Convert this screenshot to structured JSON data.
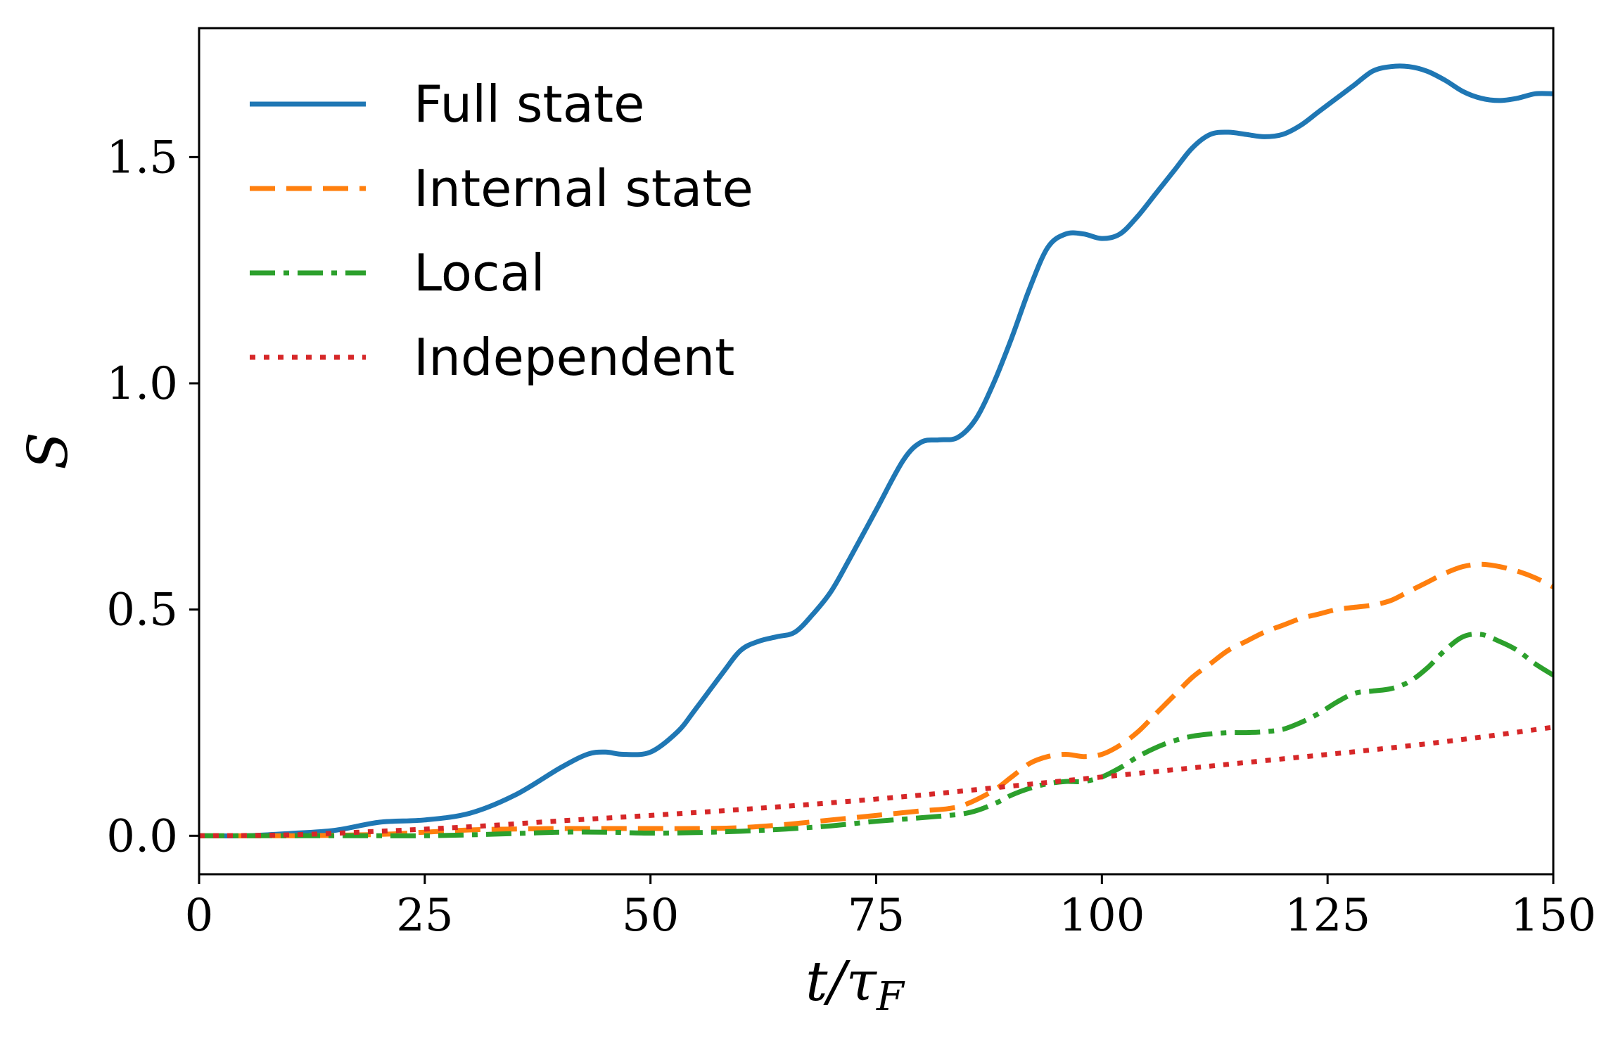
{
  "chart_data": {
    "type": "line",
    "xlabel_main": "t/τ",
    "xlabel_sub": "F",
    "ylabel": "S",
    "xlim": [
      0,
      150
    ],
    "ylim": [
      -0.085,
      1.785
    ],
    "xticks": [
      0,
      25,
      50,
      75,
      100,
      125,
      150
    ],
    "xtick_labels": [
      "0",
      "25",
      "50",
      "75",
      "100",
      "125",
      "150"
    ],
    "yticks": [
      0,
      0.5,
      1,
      1.5
    ],
    "ytick_labels": [
      "0.0",
      "0.5",
      "1.0",
      "1.5"
    ],
    "legend_position": "top-left",
    "grid": false,
    "series": [
      {
        "name": "Full state",
        "color": "#1f77b4",
        "style": "solid",
        "x": [
          0,
          5,
          10,
          15,
          20,
          25,
          30,
          35,
          40,
          43,
          45,
          47,
          50,
          53,
          55,
          58,
          60,
          62,
          64,
          66,
          68,
          70,
          72,
          75,
          78,
          80,
          82,
          84,
          86,
          88,
          90,
          92,
          94,
          96,
          98,
          100,
          102,
          104,
          106,
          108,
          110,
          112,
          114,
          116,
          118,
          120,
          122,
          124,
          126,
          128,
          130,
          132,
          134,
          136,
          138,
          140,
          142,
          144,
          146,
          148,
          150
        ],
        "values": [
          0,
          0,
          0.005,
          0.012,
          0.03,
          0.035,
          0.05,
          0.09,
          0.15,
          0.18,
          0.185,
          0.18,
          0.185,
          0.23,
          0.28,
          0.36,
          0.41,
          0.43,
          0.44,
          0.45,
          0.49,
          0.54,
          0.61,
          0.72,
          0.83,
          0.87,
          0.875,
          0.88,
          0.92,
          1.0,
          1.1,
          1.21,
          1.3,
          1.33,
          1.33,
          1.32,
          1.33,
          1.37,
          1.42,
          1.47,
          1.52,
          1.55,
          1.555,
          1.55,
          1.545,
          1.55,
          1.57,
          1.6,
          1.63,
          1.66,
          1.69,
          1.7,
          1.7,
          1.69,
          1.67,
          1.645,
          1.63,
          1.625,
          1.63,
          1.64,
          1.64
        ]
      },
      {
        "name": "Internal state",
        "color": "#ff7f0e",
        "style": "dashed",
        "x": [
          0,
          10,
          20,
          25,
          30,
          35,
          40,
          45,
          50,
          55,
          60,
          65,
          70,
          75,
          80,
          83,
          85,
          88,
          90,
          92,
          94,
          96,
          98,
          100,
          102,
          104,
          106,
          108,
          110,
          112,
          114,
          116,
          118,
          120,
          122,
          124,
          126,
          128,
          130,
          132,
          134,
          136,
          138,
          140,
          142,
          144,
          146,
          148,
          150
        ],
        "values": [
          0,
          0,
          0.003,
          0.008,
          0.013,
          0.015,
          0.016,
          0.016,
          0.016,
          0.016,
          0.018,
          0.025,
          0.035,
          0.045,
          0.055,
          0.06,
          0.07,
          0.1,
          0.13,
          0.16,
          0.175,
          0.18,
          0.175,
          0.18,
          0.2,
          0.23,
          0.27,
          0.31,
          0.35,
          0.38,
          0.41,
          0.43,
          0.45,
          0.465,
          0.48,
          0.49,
          0.5,
          0.505,
          0.51,
          0.52,
          0.54,
          0.56,
          0.58,
          0.595,
          0.6,
          0.595,
          0.585,
          0.57,
          0.55
        ]
      },
      {
        "name": "Local",
        "color": "#2ca02c",
        "style": "dashdot",
        "x": [
          0,
          10,
          20,
          25,
          30,
          35,
          40,
          45,
          50,
          55,
          60,
          65,
          70,
          75,
          80,
          85,
          88,
          90,
          92,
          94,
          96,
          98,
          100,
          102,
          104,
          106,
          108,
          110,
          112,
          114,
          116,
          118,
          120,
          122,
          124,
          126,
          128,
          130,
          132,
          134,
          136,
          138,
          140,
          142,
          144,
          146,
          148,
          150
        ],
        "values": [
          0,
          0,
          0,
          0,
          0.002,
          0.005,
          0.008,
          0.008,
          0.006,
          0.007,
          0.01,
          0.015,
          0.022,
          0.032,
          0.04,
          0.05,
          0.07,
          0.09,
          0.105,
          0.115,
          0.12,
          0.12,
          0.13,
          0.15,
          0.175,
          0.195,
          0.21,
          0.22,
          0.225,
          0.228,
          0.228,
          0.23,
          0.235,
          0.25,
          0.27,
          0.295,
          0.315,
          0.32,
          0.325,
          0.34,
          0.37,
          0.41,
          0.44,
          0.445,
          0.43,
          0.41,
          0.38,
          0.355
        ]
      },
      {
        "name": "Independent",
        "color": "#d62728",
        "style": "dotted",
        "x": [
          0,
          10,
          20,
          30,
          40,
          50,
          60,
          70,
          80,
          90,
          100,
          110,
          120,
          130,
          140,
          150
        ],
        "values": [
          0,
          0.002,
          0.01,
          0.02,
          0.033,
          0.045,
          0.058,
          0.073,
          0.09,
          0.11,
          0.13,
          0.15,
          0.17,
          0.19,
          0.213,
          0.24
        ]
      }
    ]
  }
}
